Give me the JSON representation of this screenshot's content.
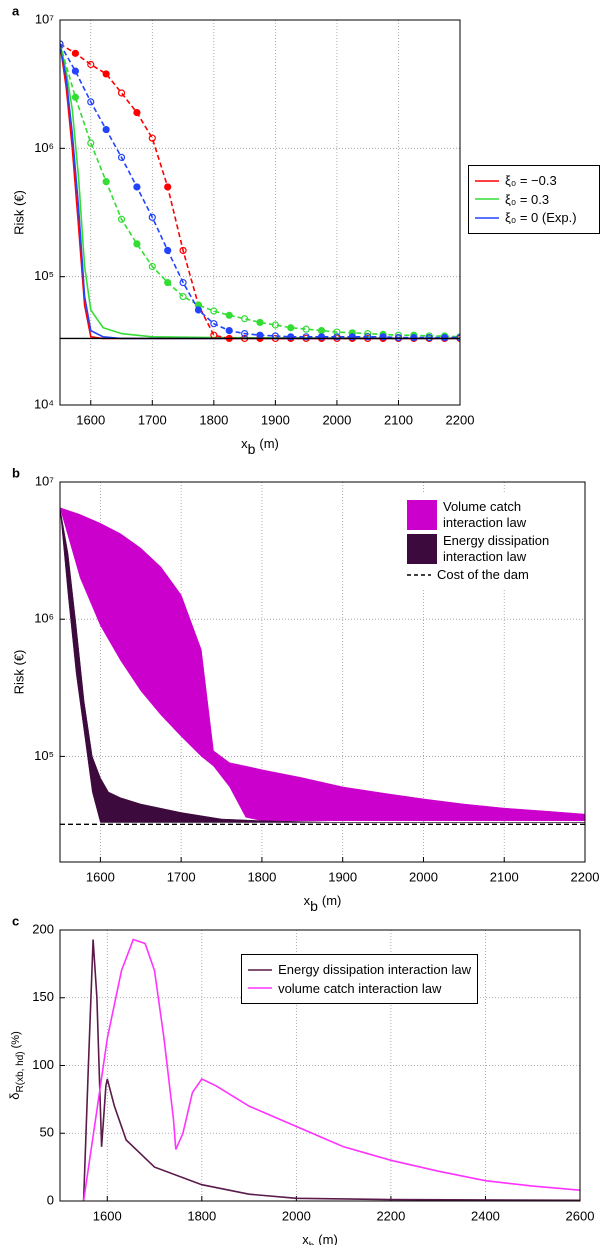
{
  "chart_data": [
    {
      "type": "line",
      "panel": "a",
      "xlabel": {
        "base": "x",
        "sub": "b",
        "unit": "(m)"
      },
      "ylabel": "Risk (€)",
      "xlim": [
        1550,
        2200
      ],
      "xticks": [
        1600,
        1700,
        1800,
        1900,
        2000,
        2100,
        2200
      ],
      "ylim": [
        10000,
        10000000
      ],
      "yscale": "log",
      "yticks": [
        {
          "value": 10000,
          "label": "10⁴"
        },
        {
          "value": 100000,
          "label": "10⁵"
        },
        {
          "value": 1000000,
          "label": "10⁶"
        },
        {
          "value": 10000000,
          "label": "10⁷"
        }
      ],
      "grid": true,
      "legend": "outside right",
      "hline": {
        "value": 33000,
        "color": "#000000",
        "style": "solid"
      },
      "series": [
        {
          "name": "ξ₀ = −0.3",
          "color": "#ff0000",
          "style": "solid",
          "x": [
            1550,
            1560,
            1570,
            1580,
            1590,
            1600,
            1620,
            1650,
            1700,
            1800,
            2200
          ],
          "values": [
            6500000,
            3000000,
            1000000,
            250000,
            60000,
            34000,
            33000,
            33000,
            33000,
            33000,
            33000
          ]
        },
        {
          "name": "ξ₀ = 0.3",
          "color": "#33dd33",
          "style": "solid",
          "x": [
            1550,
            1560,
            1570,
            1580,
            1590,
            1600,
            1620,
            1650,
            1700,
            1800,
            2200
          ],
          "values": [
            6500000,
            4000000,
            2000000,
            600000,
            120000,
            55000,
            40000,
            36000,
            34000,
            33500,
            33000
          ]
        },
        {
          "name": "ξ₀ = 0 (Exp.)",
          "color": "#2244ff",
          "style": "solid",
          "x": [
            1550,
            1560,
            1570,
            1580,
            1590,
            1600,
            1620,
            1650,
            1700,
            1800,
            2200
          ],
          "values": [
            6500000,
            3500000,
            1300000,
            350000,
            70000,
            38000,
            34000,
            33000,
            33000,
            33000,
            33000
          ]
        },
        {
          "color": "#ff0000",
          "style": "dashed",
          "markers": true,
          "x": [
            1550,
            1575,
            1600,
            1625,
            1650,
            1675,
            1700,
            1725,
            1750,
            1775,
            1800,
            1825,
            1850,
            1875,
            1900,
            1925,
            1950,
            1975,
            2000,
            2025,
            2050,
            2075,
            2100,
            2125,
            2150,
            2175,
            2200
          ],
          "values": [
            6500000,
            5500000,
            4500000,
            3800000,
            2700000,
            1900000,
            1200000,
            500000,
            160000,
            60000,
            35000,
            33000,
            33000,
            33000,
            33000,
            33000,
            33000,
            33000,
            33000,
            33000,
            33000,
            33000,
            33000,
            33000,
            33000,
            33000,
            33000
          ]
        },
        {
          "color": "#33dd33",
          "style": "dashed",
          "markers": true,
          "x": [
            1550,
            1575,
            1600,
            1625,
            1650,
            1675,
            1700,
            1725,
            1750,
            1775,
            1800,
            1825,
            1850,
            1875,
            1900,
            1925,
            1950,
            1975,
            2000,
            2025,
            2050,
            2075,
            2100,
            2125,
            2150,
            2175,
            2200
          ],
          "values": [
            6500000,
            2500000,
            1100000,
            550000,
            280000,
            180000,
            120000,
            90000,
            70000,
            60000,
            54000,
            50000,
            47000,
            44000,
            42000,
            40000,
            39000,
            38000,
            37000,
            36500,
            36000,
            35500,
            35000,
            35000,
            34500,
            34500,
            34000
          ]
        },
        {
          "color": "#2244ff",
          "style": "dashed",
          "markers": true,
          "x": [
            1550,
            1575,
            1600,
            1625,
            1650,
            1675,
            1700,
            1725,
            1750,
            1775,
            1800,
            1825,
            1850,
            1875,
            1900,
            1925,
            1950,
            1975,
            2000,
            2025,
            2050,
            2075,
            2100,
            2125,
            2150,
            2175,
            2200
          ],
          "values": [
            6500000,
            4000000,
            2300000,
            1400000,
            850000,
            500000,
            290000,
            160000,
            90000,
            55000,
            43000,
            38000,
            36000,
            35000,
            34500,
            34000,
            34000,
            34000,
            34000,
            34000,
            34000,
            34000,
            33500,
            33500,
            33500,
            33500,
            33500
          ]
        }
      ]
    },
    {
      "type": "area",
      "panel": "b",
      "xlabel": {
        "base": "x",
        "sub": "b",
        "unit": "(m)"
      },
      "ylabel": "Risk (€)",
      "xlim": [
        1550,
        2200
      ],
      "xticks": [
        1600,
        1700,
        1800,
        1900,
        2000,
        2100,
        2200
      ],
      "ylim": [
        17000,
        10000000
      ],
      "yscale": "log",
      "yticks": [
        {
          "value": 100000,
          "label": "10⁵"
        },
        {
          "value": 1000000,
          "label": "10⁶"
        },
        {
          "value": 10000000,
          "label": "10⁷"
        }
      ],
      "grid": true,
      "legend": "upper right",
      "series": [
        {
          "name": "Volume catch interaction law",
          "color": "#cc00cc",
          "x": [
            1550,
            1575,
            1600,
            1625,
            1650,
            1675,
            1700,
            1725,
            1740,
            1760,
            1780,
            1800,
            1850,
            1900,
            1950,
            2000,
            2050,
            2100,
            2150,
            2200
          ],
          "upper": [
            6500000,
            5800000,
            5000000,
            4200000,
            3300000,
            2400000,
            1500000,
            600000,
            110000,
            90000,
            85000,
            80000,
            70000,
            60000,
            54000,
            49000,
            45000,
            42000,
            40000,
            38000
          ],
          "lower": [
            6500000,
            2000000,
            900000,
            500000,
            300000,
            200000,
            140000,
            100000,
            85000,
            60000,
            36000,
            34000,
            34000,
            34000,
            34000,
            34000,
            34000,
            34000,
            34000,
            34000
          ]
        },
        {
          "name": "Energy dissipation interaction law",
          "color": "#3d0a3d",
          "x": [
            1550,
            1560,
            1570,
            1580,
            1590,
            1600,
            1610,
            1625,
            1650,
            1700,
            1750,
            1800,
            1850,
            1900,
            2000,
            2100,
            2200
          ],
          "upper": [
            6500000,
            3000000,
            900000,
            250000,
            100000,
            70000,
            55000,
            50000,
            45000,
            39000,
            35000,
            34000,
            33500,
            33000,
            33000,
            33000,
            33000
          ],
          "lower": [
            6500000,
            1500000,
            400000,
            150000,
            55000,
            33000,
            33000,
            33000,
            33000,
            33000,
            33000,
            33000,
            33000,
            33000,
            33000,
            33000,
            33000
          ]
        }
      ],
      "hline": {
        "name": "Cost of the dam",
        "value": 32000,
        "color": "#000000",
        "style": "dashed"
      }
    },
    {
      "type": "line",
      "panel": "c",
      "xlabel": {
        "base": "x",
        "sub": "b",
        "unit": "(m)"
      },
      "ylabel": {
        "base": "δ",
        "sub": "R(xb, hd)",
        "unit": "(%)"
      },
      "xlim": [
        1500,
        2600
      ],
      "xticks": [
        1600,
        1800,
        2000,
        2200,
        2400,
        2600
      ],
      "ylim": [
        0,
        200
      ],
      "yscale": "linear",
      "yticks": [
        0,
        50,
        100,
        150,
        200
      ],
      "grid": true,
      "legend": "upper right",
      "series": [
        {
          "name": "Energy dissipation interaction law",
          "color": "#5a1a4a",
          "style": "solid",
          "x": [
            1550,
            1560,
            1570,
            1578,
            1588,
            1597,
            1600,
            1615,
            1640,
            1700,
            1800,
            1900,
            2000,
            2200,
            2600
          ],
          "values": [
            0,
            100,
            193,
            150,
            40,
            85,
            90,
            70,
            45,
            25,
            12,
            5,
            2,
            1,
            0.5
          ]
        },
        {
          "name": "volume catch interaction law",
          "color": "#ff33ff",
          "style": "solid",
          "x": [
            1550,
            1575,
            1600,
            1630,
            1655,
            1680,
            1700,
            1720,
            1740,
            1745,
            1760,
            1780,
            1800,
            1830,
            1900,
            2000,
            2100,
            2200,
            2300,
            2400,
            2500,
            2600
          ],
          "values": [
            0,
            60,
            120,
            170,
            193,
            190,
            170,
            120,
            60,
            38,
            50,
            80,
            90,
            85,
            70,
            55,
            40,
            30,
            22,
            15,
            11,
            8
          ]
        }
      ]
    }
  ]
}
